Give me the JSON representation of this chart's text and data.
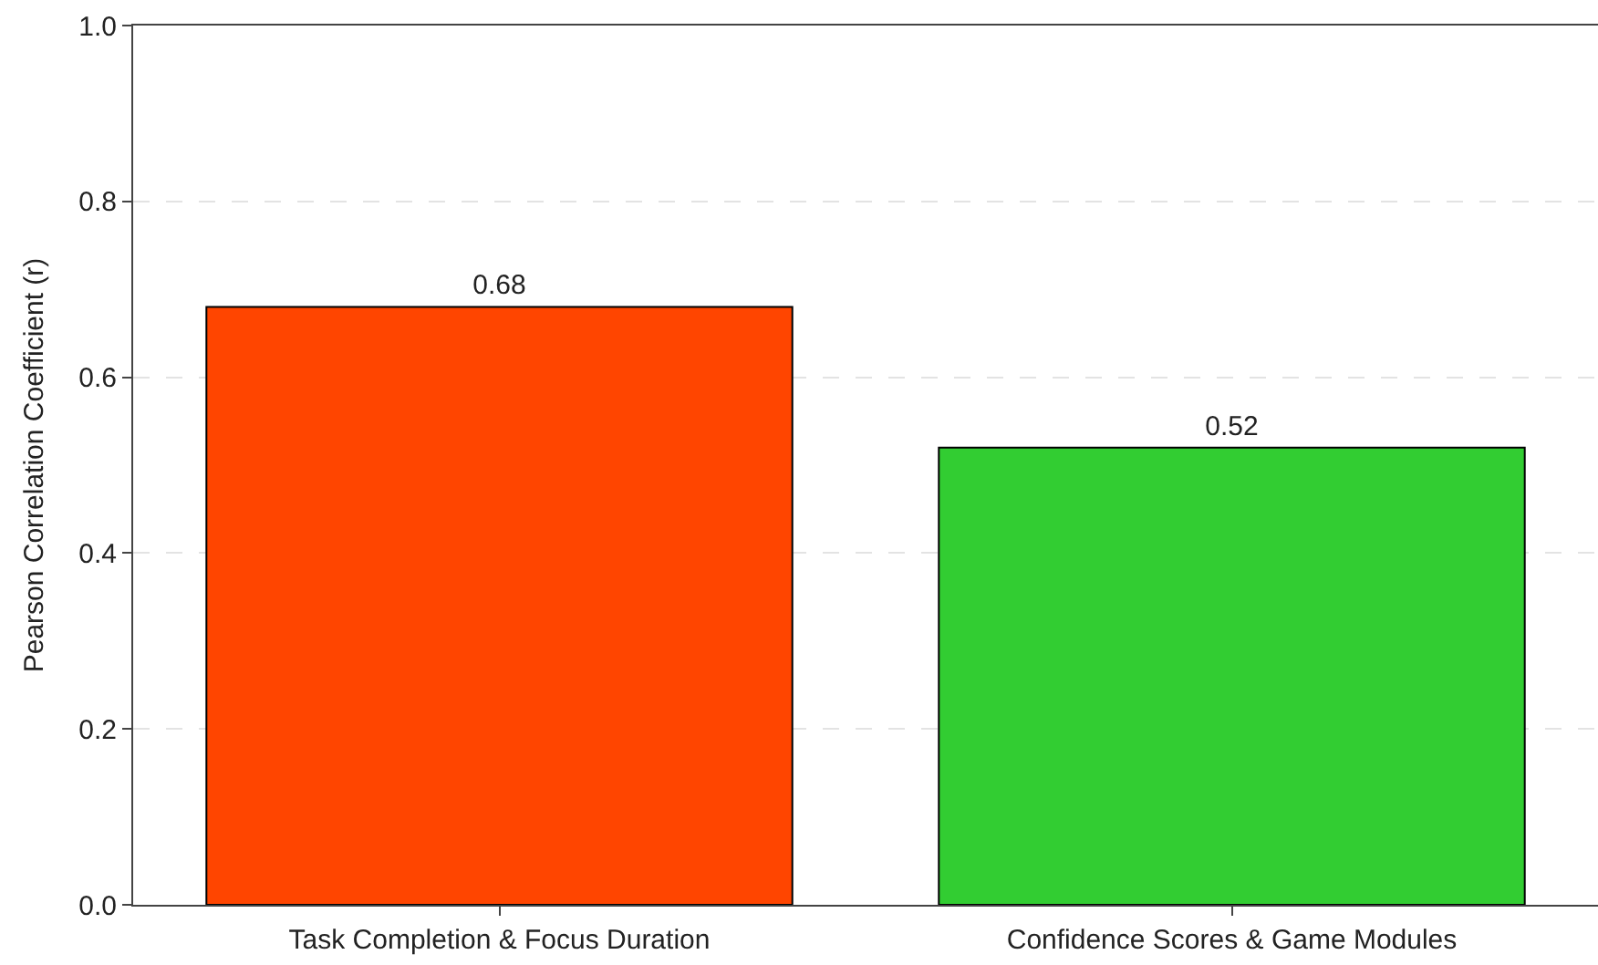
{
  "chart_data": {
    "type": "bar",
    "ylabel": "Pearson Correlation Coefficient (r)",
    "categories": [
      "Task Completion & Focus Duration",
      "Confidence Scores & Game Modules"
    ],
    "values": [
      0.68,
      0.52
    ],
    "colors": [
      "#ff4500",
      "#32cd32"
    ],
    "ylim": [
      0,
      1
    ],
    "yticks": [
      {
        "value": 0,
        "label": "0.0"
      },
      {
        "value": 0.2,
        "label": "0.2"
      },
      {
        "value": 0.4,
        "label": "0.4"
      },
      {
        "value": 0.6,
        "label": "0.6"
      },
      {
        "value": 0.8,
        "label": "0.8"
      },
      {
        "value": 1,
        "label": "1.0"
      }
    ],
    "grid": "y",
    "data_labels": true
  }
}
